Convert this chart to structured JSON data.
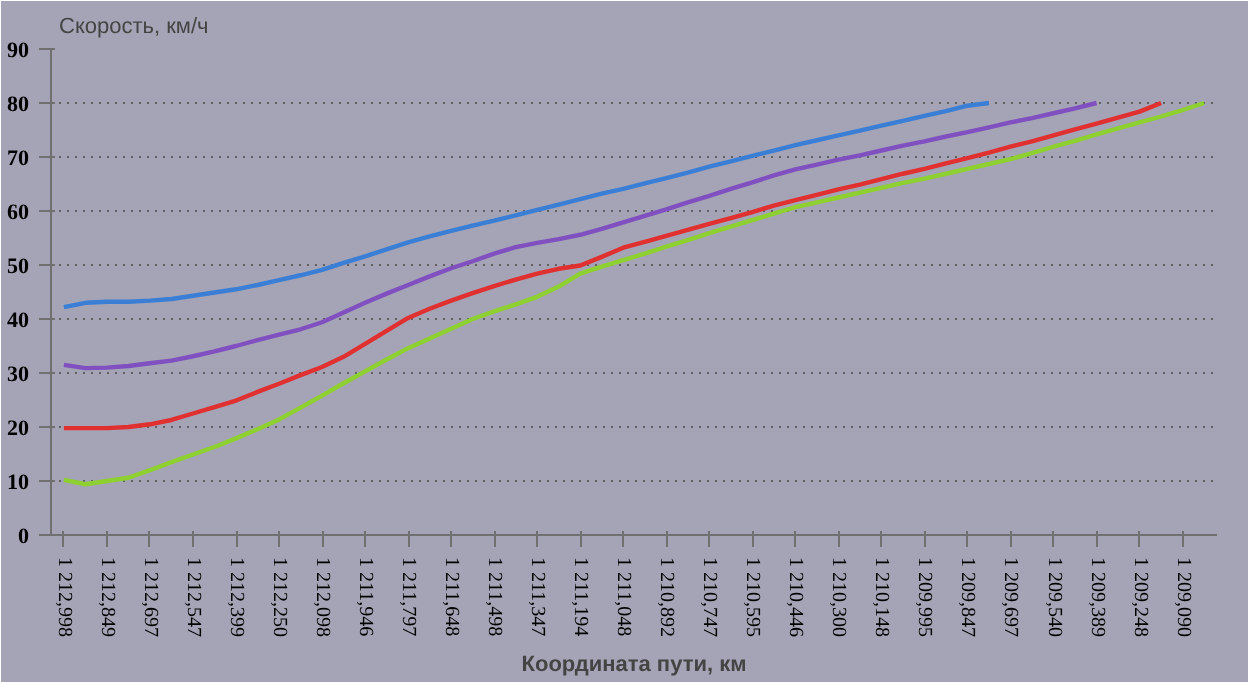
{
  "chart_data": {
    "type": "line",
    "xlabel": "Координата пути, км",
    "ylabel": "Скорость, км/ч",
    "categories": [
      "1 212,998",
      null,
      "1 212,849",
      null,
      "1 212,697",
      null,
      "1 212,547",
      null,
      "1 212,399",
      null,
      "1 212,250",
      null,
      "1 212,098",
      null,
      "1 211,946",
      null,
      "1 211,797",
      null,
      "1 211,648",
      null,
      "1 211,498",
      null,
      "1 211,347",
      null,
      "1 211,194",
      null,
      "1 211,048",
      null,
      "1 210,892",
      null,
      "1 210,747",
      null,
      "1 210,595",
      null,
      "1 210,446",
      null,
      "1 210,300",
      null,
      "1 210,148",
      null,
      "1 209,995",
      null,
      "1 209,847",
      null,
      "1 209,697",
      null,
      "1 209,540",
      null,
      "1 209,389",
      null,
      "1 209,248",
      null,
      "1 209,090",
      null
    ],
    "ylim": [
      0,
      90
    ],
    "yticks": [
      0,
      10,
      20,
      30,
      40,
      50,
      60,
      70,
      80,
      90
    ],
    "grid": "y",
    "marker": "none",
    "line_style": "solid",
    "series": [
      {
        "color": "#3a7fd5",
        "values": [
          42.2,
          43.0,
          43.2,
          43.2,
          43.4,
          43.7,
          44.3,
          44.9,
          45.5,
          46.3,
          47.2,
          48.1,
          49.1,
          50.4,
          51.6,
          52.9,
          54.2,
          55.3,
          56.3,
          57.3,
          58.2,
          59.2,
          60.2,
          61.2,
          62.2,
          63.2,
          64.1,
          65.1,
          66.1,
          67.1,
          68.2,
          69.2,
          70.2,
          71.2,
          72.2,
          73.1,
          74.0,
          74.9,
          75.8,
          76.7,
          77.6,
          78.5,
          79.5,
          80,
          null,
          null,
          null,
          null,
          null,
          null,
          null,
          null,
          null,
          null
        ]
      },
      {
        "color": "#8050c0",
        "values": [
          31.5,
          30.9,
          31.0,
          31.3,
          31.8,
          32.3,
          33.1,
          34.0,
          35.0,
          36.1,
          37.1,
          38.1,
          39.4,
          41.2,
          43.0,
          44.7,
          46.3,
          47.9,
          49.4,
          50.7,
          52.1,
          53.3,
          54.1,
          54.8,
          55.6,
          56.7,
          57.9,
          59.1,
          60.3,
          61.6,
          62.8,
          64.1,
          65.3,
          66.6,
          67.7,
          68.6,
          69.5,
          70.3,
          71.2,
          72.1,
          72.9,
          73.8,
          74.6,
          75.5,
          76.4,
          77.2,
          78.1,
          79.0,
          80,
          null,
          null,
          null,
          null,
          null
        ]
      },
      {
        "color": "#e03030",
        "values": [
          19.8,
          19.8,
          19.8,
          20.0,
          20.5,
          21.3,
          22.5,
          23.7,
          24.9,
          26.5,
          28.0,
          29.6,
          31.1,
          33.0,
          35.4,
          37.8,
          40.2,
          41.9,
          43.4,
          44.8,
          46.1,
          47.3,
          48.4,
          49.3,
          49.9,
          51.5,
          53.2,
          54.3,
          55.4,
          56.5,
          57.6,
          58.7,
          59.8,
          61.0,
          62.0,
          63.0,
          64.0,
          64.9,
          65.9,
          66.9,
          67.8,
          68.8,
          69.8,
          70.8,
          71.9,
          72.9,
          74.0,
          75.1,
          76.2,
          77.3,
          78.4,
          80,
          null,
          null
        ]
      },
      {
        "color": "#8ed030",
        "values": [
          10.2,
          9.4,
          10.0,
          10.6,
          12.0,
          13.5,
          14.9,
          16.3,
          17.9,
          19.6,
          21.4,
          23.6,
          25.8,
          28.1,
          30.3,
          32.5,
          34.6,
          36.4,
          38.2,
          40.0,
          41.4,
          42.7,
          44.1,
          46.0,
          48.4,
          49.7,
          50.9,
          52.1,
          53.4,
          54.6,
          55.9,
          57.1,
          58.3,
          59.5,
          60.7,
          61.6,
          62.5,
          63.4,
          64.3,
          65.2,
          66.0,
          66.9,
          67.8,
          68.7,
          69.6,
          70.7,
          71.9,
          73.0,
          74.2,
          75.3,
          76.4,
          77.5,
          78.7,
          80
        ]
      }
    ]
  }
}
